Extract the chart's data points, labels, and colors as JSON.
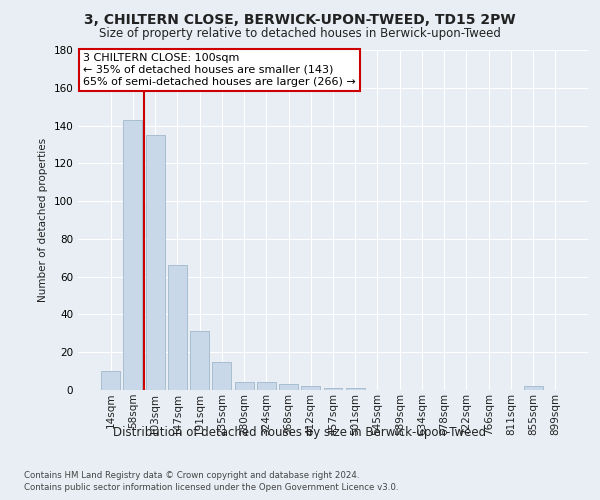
{
  "title": "3, CHILTERN CLOSE, BERWICK-UPON-TWEED, TD15 2PW",
  "subtitle": "Size of property relative to detached houses in Berwick-upon-Tweed",
  "xlabel": "Distribution of detached houses by size in Berwick-upon-Tweed",
  "ylabel": "Number of detached properties",
  "categories": [
    "14sqm",
    "58sqm",
    "103sqm",
    "147sqm",
    "191sqm",
    "235sqm",
    "280sqm",
    "324sqm",
    "368sqm",
    "412sqm",
    "457sqm",
    "501sqm",
    "545sqm",
    "589sqm",
    "634sqm",
    "678sqm",
    "722sqm",
    "766sqm",
    "811sqm",
    "855sqm",
    "899sqm"
  ],
  "values": [
    10,
    143,
    135,
    66,
    31,
    15,
    4,
    4,
    3,
    2,
    1,
    1,
    0,
    0,
    0,
    0,
    0,
    0,
    0,
    2,
    0
  ],
  "bar_color": "#c8d8e8",
  "bar_edge_color": "#a0b8cc",
  "vline_x": 1.5,
  "vline_color": "#cc0000",
  "annotation_title": "3 CHILTERN CLOSE: 100sqm",
  "annotation_line1": "← 35% of detached houses are smaller (143)",
  "annotation_line2": "65% of semi-detached houses are larger (266) →",
  "annotation_box_color": "#ffffff",
  "annotation_box_edge": "#cc0000",
  "ylim": [
    0,
    180
  ],
  "yticks": [
    0,
    20,
    40,
    60,
    80,
    100,
    120,
    140,
    160,
    180
  ],
  "background_color": "#e8eef4",
  "footer1": "Contains HM Land Registry data © Crown copyright and database right 2024.",
  "footer2": "Contains public sector information licensed under the Open Government Licence v3.0."
}
